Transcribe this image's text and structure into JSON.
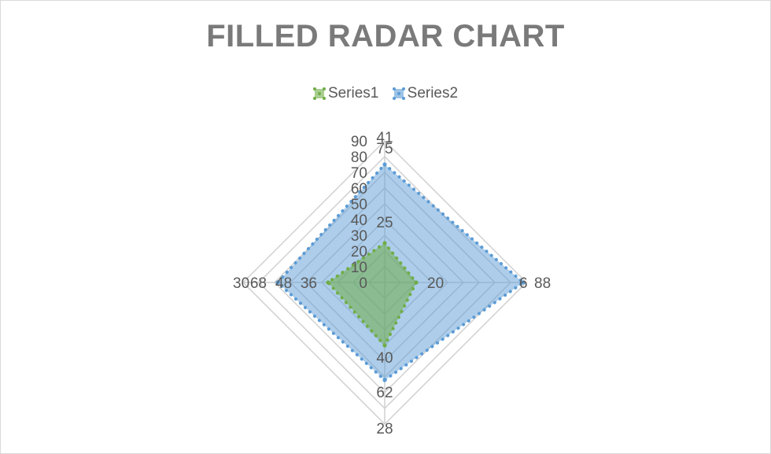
{
  "chart_data": {
    "type": "radar",
    "title": "FILLED RADAR CHART",
    "legend_position": "top",
    "grid": true,
    "categories": [
      "",
      "",
      "",
      ""
    ],
    "rlim": [
      0,
      90
    ],
    "r_ticks": [
      "0",
      "10",
      "20",
      "30",
      "40",
      "50",
      "60",
      "70",
      "80",
      "90"
    ],
    "series": [
      {
        "name": "Series1",
        "color": "#70ad47",
        "values": [
          25,
          20,
          40,
          36
        ],
        "data_labels": [
          "25",
          "20",
          "40",
          "36"
        ],
        "extra_labels": [
          "41",
          "6",
          "28",
          "30"
        ]
      },
      {
        "name": "Series2",
        "color": "#5b9bd5",
        "values": [
          75,
          88,
          62,
          68
        ],
        "data_labels": [
          "75",
          "88",
          "62",
          "68"
        ],
        "extra_labels": [
          "",
          "",
          "",
          "48"
        ]
      }
    ]
  }
}
